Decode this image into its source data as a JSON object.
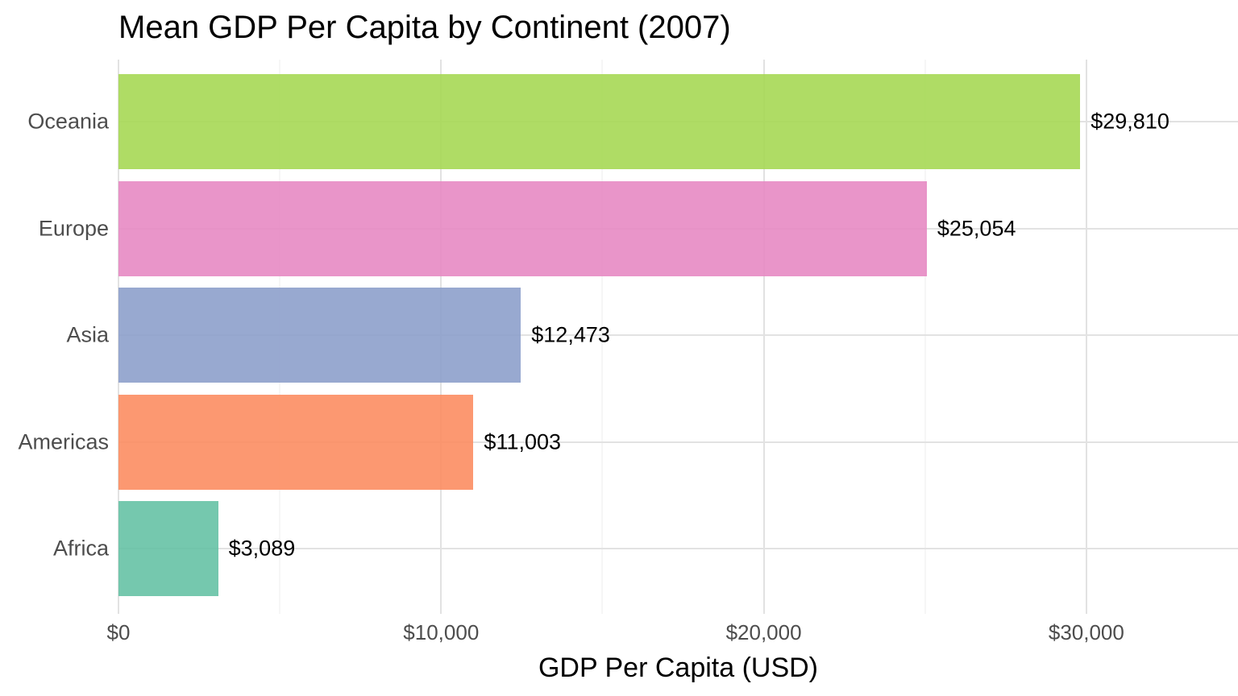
{
  "chart_data": {
    "type": "bar",
    "orientation": "horizontal",
    "title": "Mean GDP Per Capita by Continent (2007)",
    "xlabel": "GDP Per Capita (USD)",
    "ylabel": "",
    "categories": [
      "Oceania",
      "Europe",
      "Asia",
      "Americas",
      "Africa"
    ],
    "values": [
      29810,
      25054,
      12473,
      11003,
      3089
    ],
    "value_labels": [
      "$29,810",
      "$25,054",
      "$12,473",
      "$11,003",
      "$3,089"
    ],
    "bar_colors": [
      "#a6d854",
      "#e78ac3",
      "#8da0cb",
      "#fc8d62",
      "#66c2a5"
    ],
    "bar_opacity": 0.9,
    "xlim": [
      0,
      34700
    ],
    "x_major_ticks": [
      {
        "value": 0,
        "label": "$0"
      },
      {
        "value": 10000,
        "label": "$10,000"
      },
      {
        "value": 20000,
        "label": "$20,000"
      },
      {
        "value": 30000,
        "label": "$30,000"
      }
    ],
    "x_minor_ticks": [
      5000,
      15000,
      25000
    ],
    "grid": "vertical major+minor, horizontal major at category centers",
    "legend": false,
    "colors": {
      "grid_major": "#e2e2e2",
      "grid_minor": "#ededed",
      "axis_text": "#4d4d4d",
      "title_text": "#000000",
      "value_label_text": "#000000",
      "background": "#ffffff"
    }
  }
}
